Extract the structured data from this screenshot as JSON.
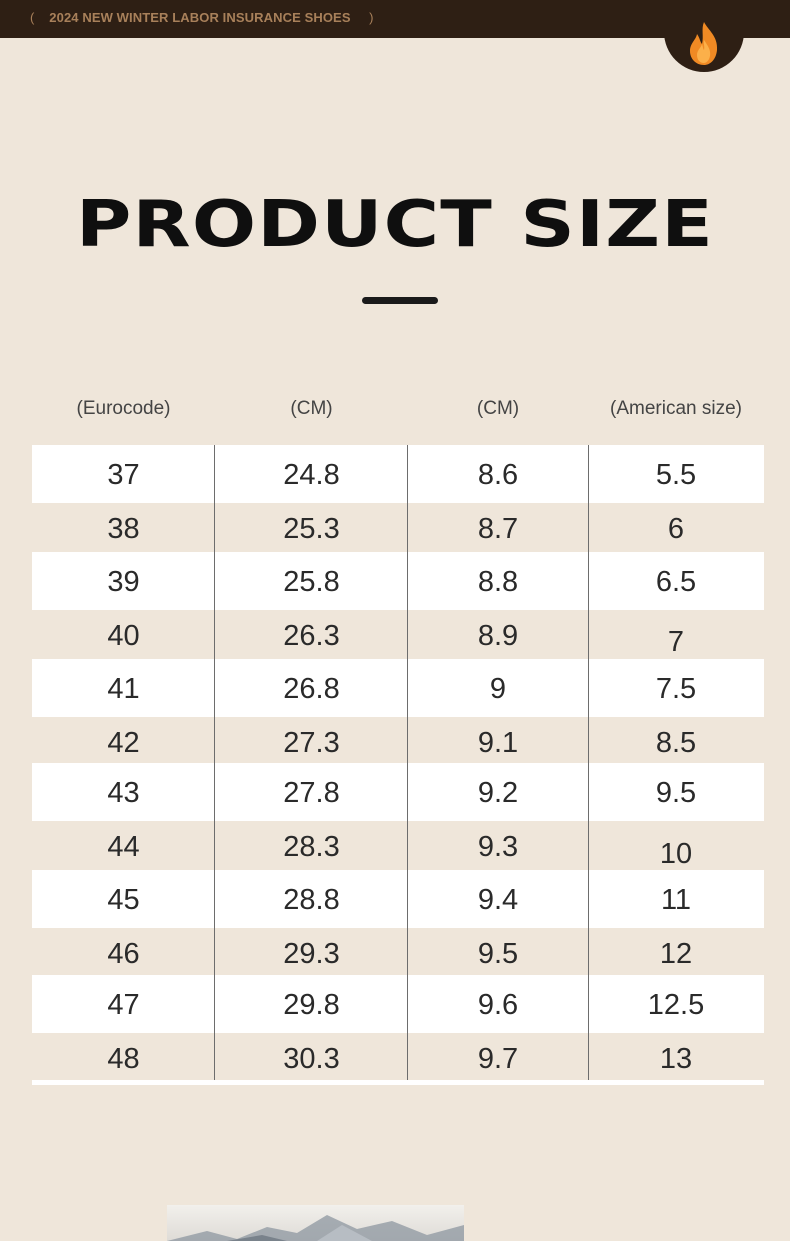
{
  "banner": {
    "open_paren": "(",
    "text": "2024 NEW WINTER LABOR INSURANCE SHOES",
    "close_paren": ")",
    "icon": "flame-icon"
  },
  "title": "PRODUCT SIZE",
  "table": {
    "headers": [
      "(Eurocode)",
      "(CM)",
      "(CM)",
      "(American size)"
    ],
    "rows": [
      [
        "37",
        "24.8",
        "8.6",
        "5.5"
      ],
      [
        "38",
        "25.3",
        "8.7",
        "6"
      ],
      [
        "39",
        "25.8",
        "8.8",
        "6.5"
      ],
      [
        "40",
        "26.3",
        "8.9",
        "7"
      ],
      [
        "41",
        "26.8",
        "9",
        "7.5"
      ],
      [
        "42",
        "27.3",
        "9.1",
        "8.5"
      ],
      [
        "43",
        "27.8",
        "9.2",
        "9.5"
      ],
      [
        "44",
        "28.3",
        "9.3",
        "10"
      ],
      [
        "45",
        "28.8",
        "9.4",
        "11"
      ],
      [
        "46",
        "29.3",
        "9.5",
        "12"
      ],
      [
        "47",
        "29.8",
        "9.6",
        "12.5"
      ],
      [
        "48",
        "30.3",
        "9.7",
        "13"
      ]
    ]
  },
  "colors": {
    "background": "#efe6da",
    "banner": "#2e1f14",
    "banner_text": "#a8805a",
    "flame_outer": "#f08a24",
    "flame_inner": "#fbb04a"
  }
}
